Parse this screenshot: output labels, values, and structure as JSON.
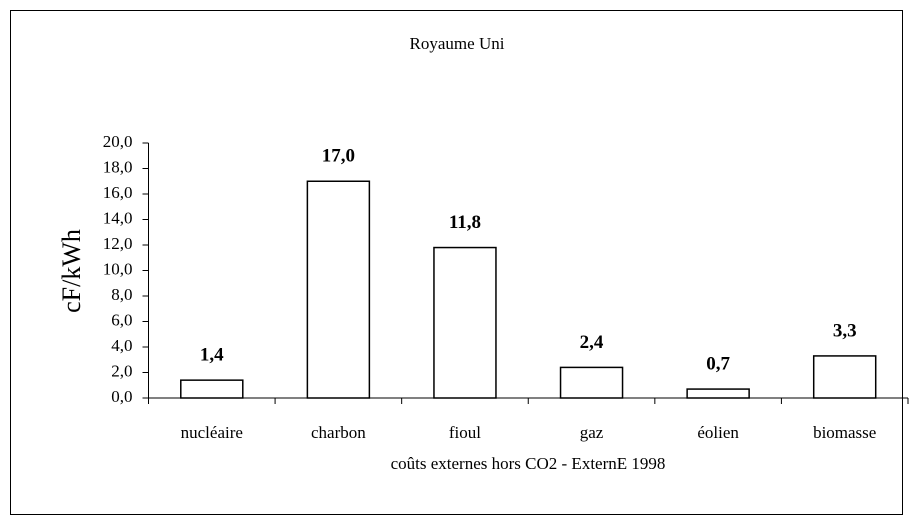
{
  "chart_data": {
    "type": "bar",
    "title": "Royaume Uni",
    "y_label": "cF/kWh",
    "x_label": "coûts externes hors CO2 - ExternE 1998",
    "categories": [
      "nucléaire",
      "charbon",
      "fioul",
      "gaz",
      "éolien",
      "biomasse"
    ],
    "values": [
      1.4,
      17.0,
      11.8,
      2.4,
      0.7,
      3.3
    ],
    "value_labels": [
      "1,4",
      "17,0",
      "11,8",
      "2,4",
      "0,7",
      "3,3"
    ],
    "color": "#ffffff",
    "ylim": [
      0,
      20
    ],
    "yticks": [
      {
        "value": 0,
        "label": "0,0"
      },
      {
        "value": 2,
        "label": "2,0"
      },
      {
        "value": 4,
        "label": "4,0"
      },
      {
        "value": 6,
        "label": "6,0"
      },
      {
        "value": 8,
        "label": "8,0"
      },
      {
        "value": 10,
        "label": "10,0"
      },
      {
        "value": 12,
        "label": "12,0"
      },
      {
        "value": 14,
        "label": "14,0"
      },
      {
        "value": 16,
        "label": "16,0"
      },
      {
        "value": 18,
        "label": "18,0"
      },
      {
        "value": 20,
        "label": "20,0"
      }
    ],
    "grid": false
  }
}
